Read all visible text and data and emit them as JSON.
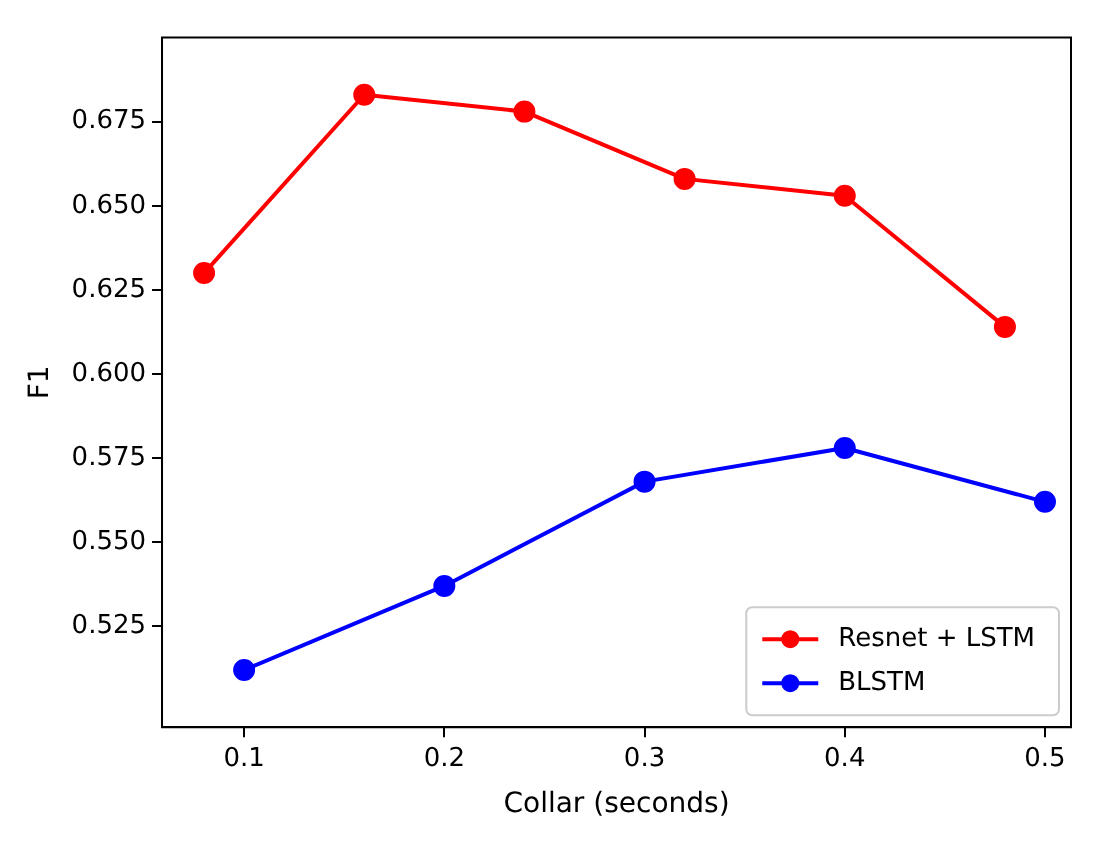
{
  "chart_data": {
    "type": "line",
    "xlabel": "Collar (seconds)",
    "ylabel": "F1",
    "xlim": [
      0.059,
      0.513
    ],
    "ylim": [
      0.495,
      0.7
    ],
    "xticks": [
      {
        "value": 0.1,
        "label": "0.1"
      },
      {
        "value": 0.2,
        "label": "0.2"
      },
      {
        "value": 0.3,
        "label": "0.3"
      },
      {
        "value": 0.4,
        "label": "0.4"
      },
      {
        "value": 0.5,
        "label": "0.5"
      }
    ],
    "yticks": [
      {
        "value": 0.525,
        "label": "0.525"
      },
      {
        "value": 0.55,
        "label": "0.550"
      },
      {
        "value": 0.575,
        "label": "0.575"
      },
      {
        "value": 0.6,
        "label": "0.600"
      },
      {
        "value": 0.625,
        "label": "0.625"
      },
      {
        "value": 0.65,
        "label": "0.650"
      },
      {
        "value": 0.675,
        "label": "0.675"
      }
    ],
    "grid": false,
    "legend": "bottom right",
    "marker": "circle",
    "line_style": "solid",
    "series": [
      {
        "name": "Resnet + LSTM",
        "color": "#ff0000",
        "x": [
          0.08,
          0.16,
          0.24,
          0.32,
          0.4,
          0.48
        ],
        "values": [
          0.63,
          0.683,
          0.678,
          0.658,
          0.653,
          0.614
        ]
      },
      {
        "name": "BLSTM",
        "color": "#0000ff",
        "x": [
          0.1,
          0.2,
          0.3,
          0.4,
          0.5
        ],
        "values": [
          0.512,
          0.537,
          0.568,
          0.578,
          0.562
        ]
      }
    ]
  }
}
